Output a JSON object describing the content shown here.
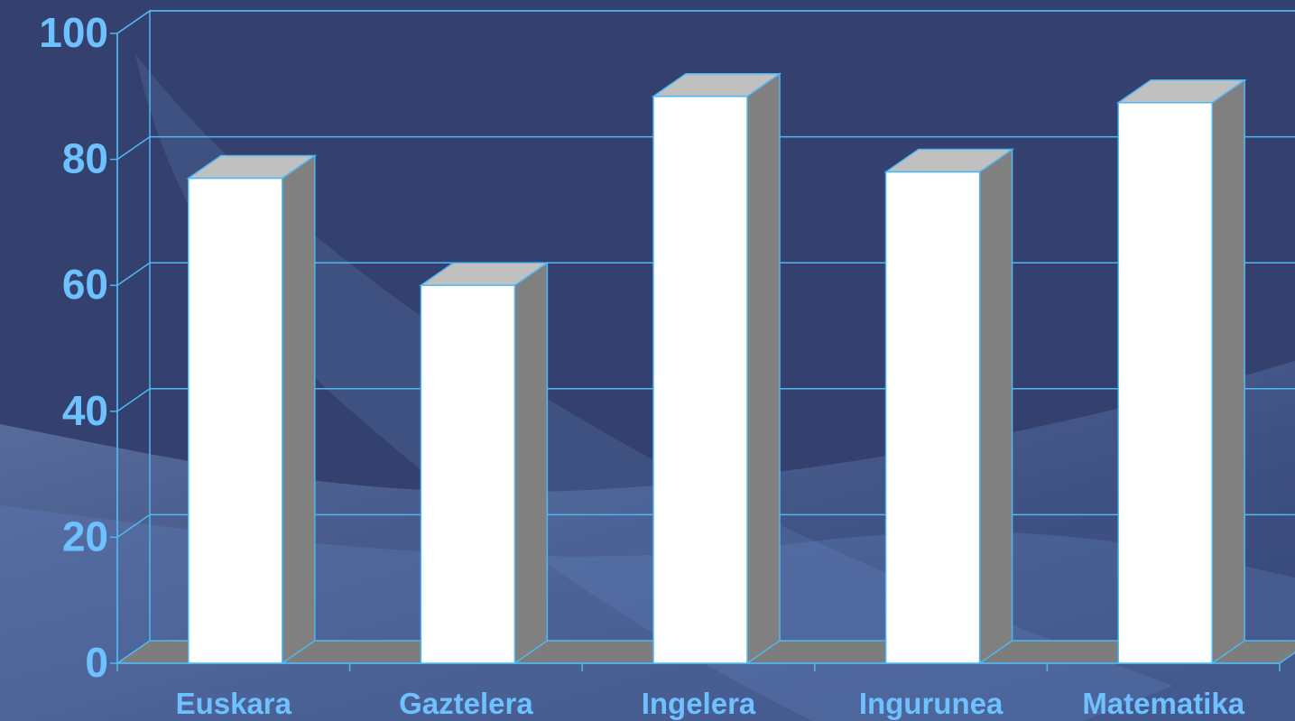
{
  "chart_data": {
    "type": "bar",
    "title": "",
    "xlabel": "",
    "ylabel": "",
    "categories": [
      "Euskara",
      "Gaztelera",
      "Ingelera",
      "Ingurunea",
      "Matematika"
    ],
    "values": [
      77,
      60,
      90,
      78,
      89
    ],
    "ylim": [
      0,
      100
    ],
    "yticks": [
      "0",
      "20",
      "40",
      "60",
      "80",
      "100"
    ],
    "grid": true,
    "legend": false
  },
  "colors": {
    "background": "#34406e",
    "background_wave": "#5f7fb8",
    "gridline": "#4fb8f2",
    "tick_label": "#6ec1ff",
    "bar_front": "#ffffff",
    "bar_top": "#c0c0c0",
    "bar_side": "#808080",
    "floor": "#7d7d7d"
  }
}
